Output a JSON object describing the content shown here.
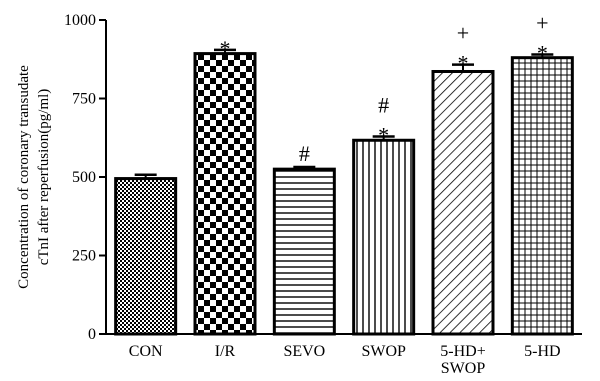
{
  "chart_data": {
    "type": "bar",
    "categories": [
      [
        "CON"
      ],
      [
        "I/R"
      ],
      [
        "SEVO"
      ],
      [
        "SWOP"
      ],
      [
        "5-HD+",
        "SWOP"
      ],
      [
        "5-HD"
      ]
    ],
    "values": [
      495,
      893,
      525,
      617,
      836,
      880
    ],
    "errors": [
      12,
      12,
      7,
      12,
      22,
      10
    ],
    "annotations": [
      [],
      [
        "*"
      ],
      [
        "#"
      ],
      [
        "#",
        "*"
      ],
      [
        "+",
        "*"
      ],
      [
        "+",
        "*"
      ]
    ],
    "patterns": [
      "checker-fine",
      "checker-coarse",
      "horizontal-lines",
      "vertical-lines",
      "diagonal-lines",
      "grid"
    ],
    "ylabel_lines": [
      "Concentration of coronary transudate",
      "cTnI after reperfusion(pg/ml)"
    ],
    "ylim": [
      0,
      1000
    ],
    "yticks": [
      0,
      250,
      500,
      750,
      1000
    ],
    "grid": false
  }
}
